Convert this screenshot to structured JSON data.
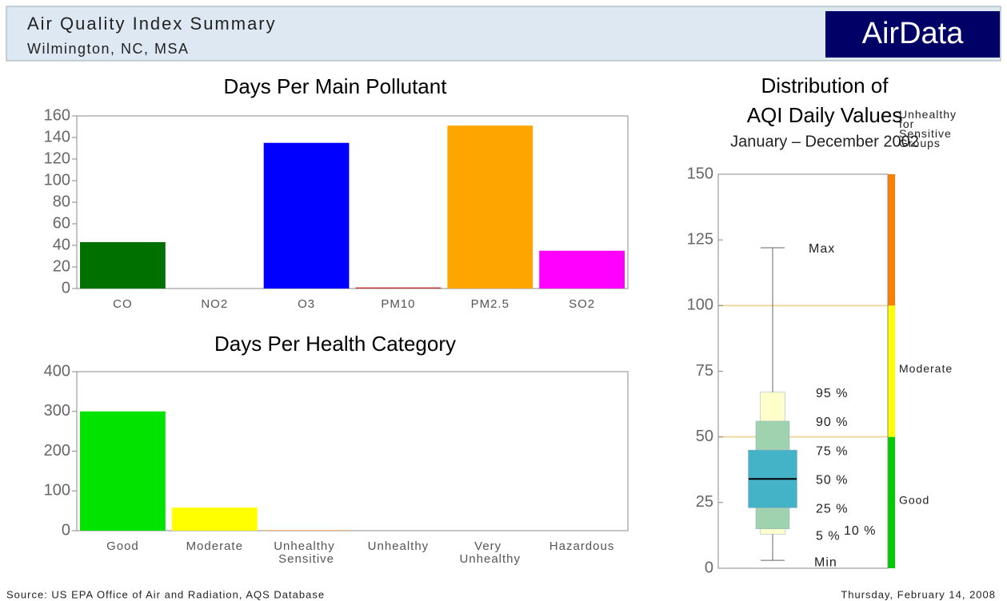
{
  "header": {
    "title": "Air Quality Index Summary",
    "subtitle": "Wilmington, NC, MSA",
    "logo": "AirData"
  },
  "chart_data": [
    {
      "type": "bar",
      "title": "Days Per Main Pollutant",
      "categories": [
        "CO",
        "NO2",
        "O3",
        "PM10",
        "PM2.5",
        "SO2"
      ],
      "values": [
        43,
        0,
        135,
        1,
        151,
        35
      ],
      "colors": [
        "#007000",
        "#8b4513",
        "#0000ff",
        "#c03030",
        "#ffa500",
        "#ff00ff"
      ],
      "ylim": [
        0,
        160
      ],
      "yticks": [
        0,
        20,
        40,
        60,
        80,
        100,
        120,
        140,
        160
      ]
    },
    {
      "type": "bar",
      "title": "Days Per Health Category",
      "categories": [
        "Good",
        "Moderate",
        "Unhealthy Sensitive",
        "Unhealthy",
        "Very Unhealthy",
        "Hazardous"
      ],
      "values": [
        300,
        58,
        1,
        0,
        0,
        0
      ],
      "colors": [
        "#00e400",
        "#ffff00",
        "#ff7e00",
        "#ff0000",
        "#99004c",
        "#7e0023"
      ],
      "ylim": [
        0,
        400
      ],
      "yticks": [
        0,
        100,
        200,
        300,
        400
      ]
    },
    {
      "type": "box",
      "title": "Distribution of\nAQI Daily Values",
      "subtitle": "January – December 2002",
      "ylim": [
        0,
        150
      ],
      "yticks": [
        0,
        25,
        50,
        75,
        100,
        125,
        150
      ],
      "stats": {
        "labels": [
          "Min",
          "5 %",
          "10 %",
          "25 %",
          "50 %",
          "75 %",
          "90 %",
          "95 %",
          "Max"
        ],
        "values": [
          3,
          13,
          15,
          23,
          34,
          45,
          56,
          67,
          122
        ]
      },
      "bands": {
        "labels": [
          "Good",
          "Moderate",
          "Unhealthy for Sensitive Groups"
        ],
        "ranges": [
          [
            0,
            50
          ],
          [
            50,
            100
          ],
          [
            100,
            150
          ]
        ],
        "colors": [
          "#00cc00",
          "#ffff00",
          "#ff7e00"
        ]
      },
      "reference_lines": [
        50,
        100
      ]
    }
  ],
  "footer": {
    "source": "Source: US EPA  Office of Air and Radiation, AQS Database",
    "date": "Thursday, February 14, 2008"
  }
}
